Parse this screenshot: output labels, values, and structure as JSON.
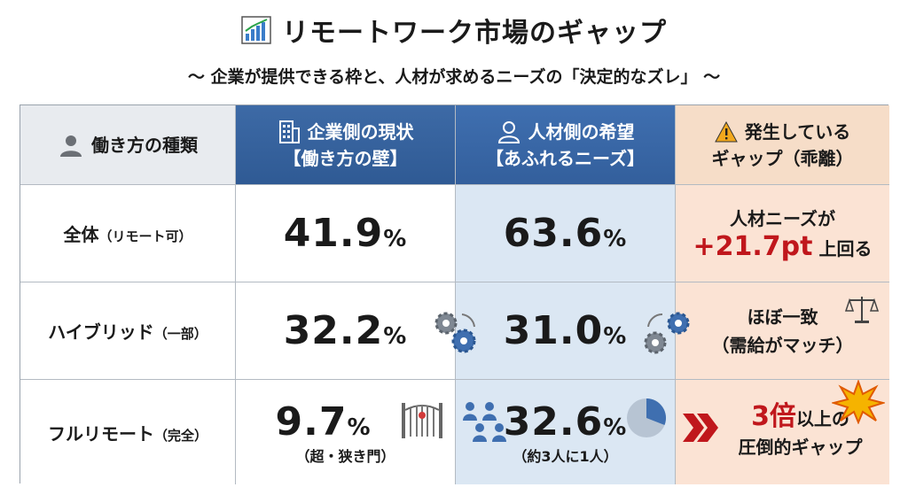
{
  "title": "リモートワーク市場のギャップ",
  "subtitle": "〜 企業が提供できる枠と、人材が求めるニーズの「決定的なズレ」 〜",
  "headers": {
    "col0": "働き方の種類",
    "col1_line1": "企業側の現状",
    "col1_line2": "【働き方の壁】",
    "col2_line1": "人材側の希望",
    "col2_line2": "【あふれるニーズ】",
    "col3_line1": "発生している",
    "col3_line2": "ギャップ（乖離）"
  },
  "rows": [
    {
      "label": "全体",
      "label_sub": "（リモート可）",
      "corp_value": "41.9",
      "want_value": "63.6",
      "gap_line1": "人材ニーズが",
      "gap_emph": "+21.7pt",
      "gap_line2": "上回る"
    },
    {
      "label": "ハイブリッド",
      "label_sub": "（一部）",
      "corp_value": "32.2",
      "want_value": "31.0",
      "gap_line1": "ほぼ一致",
      "gap_line2": "（需給がマッチ）"
    },
    {
      "label": "フルリモート",
      "label_sub": "（完全）",
      "corp_value": "9.7",
      "corp_note": "（超・狭き門）",
      "want_value": "32.6",
      "want_note": "（約3人に1人）",
      "gap_emph": "3倍",
      "gap_line1": "以上の",
      "gap_line2": "圧倒的ギャップ"
    }
  ],
  "percent_sign": "%",
  "icons": [
    "bar-chart-icon",
    "person-icon",
    "building-icon",
    "warning-icon",
    "gears-icon",
    "scale-icon",
    "gate-icon",
    "people-group-icon",
    "pie-icon",
    "chevrons-icon",
    "burst-icon"
  ],
  "colors": {
    "accent_blue": "#2f5a94",
    "gap_red": "#c0171c",
    "want_bg": "#dbe7f3",
    "gap_bg": "#fbe3d4"
  }
}
